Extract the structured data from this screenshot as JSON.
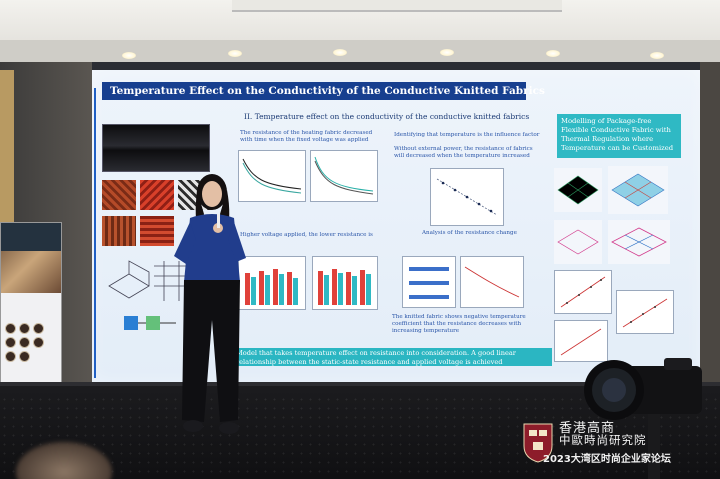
{
  "slide": {
    "title": "Temperature Effect on the Conductivity of the Conductive Knitted Fabrics",
    "subtitle": "II. Temperature effect on the conductivity of the  conductive knitted fabrics",
    "note_left_1": "The resistance of the heating fabric decreased with time when the fixed voltage was applied",
    "note_mid_1": "Identifying that temperature is the influence factor",
    "note_mid_2": "Without external power, the resistance of fabrics will decreased when the temperature increased",
    "caption_mid": "Analysis of the resistance change",
    "note_left_2": "Higher voltage applied, the lower resistance is",
    "note_bottom_mid": "The knitted fabric shows negative temperature coefficient that the resistance decreases with increasing temperature",
    "teal_box": "Modelling of Package-free Flexible Conductive Fabric with Thermal Regulation where Temperature can be Customized",
    "bottom_banner": "Model  that takes temperature effect on resistance into consideration. A good linear relationship between the static-state resistance and applied voltage is achieved"
  },
  "event": {
    "line1": "香港高商",
    "line2": "中歐時尚研究院",
    "line3": "2023大湾区时尚企业家论坛"
  },
  "colors": {
    "slide_title_bg": "#173f8f",
    "teal": "#2fb9c4"
  }
}
